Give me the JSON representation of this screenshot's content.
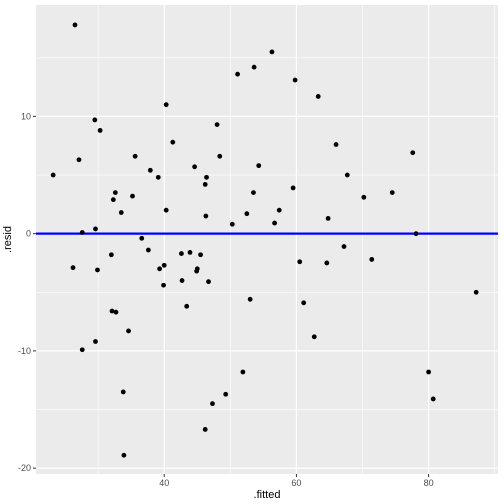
{
  "chart_data": {
    "type": "scatter",
    "title": "",
    "xlabel": ".fitted",
    "ylabel": ".resid",
    "xlim": [
      20.6,
      90.5
    ],
    "ylim": [
      -20.5,
      19.5
    ],
    "x_ticks": [
      40,
      60,
      80
    ],
    "x_minor": [
      30,
      50,
      70,
      90
    ],
    "y_ticks": [
      -20,
      -10,
      0,
      10
    ],
    "y_minor": [
      -15,
      -5,
      5,
      15
    ],
    "x_tick_labels": [
      "40",
      "60",
      "80"
    ],
    "y_tick_labels": [
      "-20",
      "-10",
      "0",
      "10"
    ],
    "grid": true,
    "hline": {
      "y": 0,
      "color": "#0000ff"
    },
    "colors": {
      "panel": "#ebebeb",
      "grid": "#ffffff",
      "points": "#000000"
    },
    "points": [
      [
        23.2,
        5.0
      ],
      [
        26.5,
        17.8
      ],
      [
        26.2,
        -2.9
      ],
      [
        27.1,
        6.3
      ],
      [
        27.6,
        0.1
      ],
      [
        27.6,
        -9.9
      ],
      [
        29.5,
        9.7
      ],
      [
        29.6,
        0.4
      ],
      [
        29.9,
        -3.1
      ],
      [
        29.6,
        -9.2
      ],
      [
        30.3,
        8.8
      ],
      [
        32.0,
        -1.8
      ],
      [
        32.3,
        2.9
      ],
      [
        32.6,
        3.5
      ],
      [
        32.1,
        -6.6
      ],
      [
        32.7,
        -6.7
      ],
      [
        33.5,
        1.8
      ],
      [
        33.8,
        -13.5
      ],
      [
        33.9,
        -18.9
      ],
      [
        34.6,
        -8.3
      ],
      [
        35.2,
        3.2
      ],
      [
        35.6,
        6.6
      ],
      [
        36.6,
        -0.4
      ],
      [
        37.6,
        -1.4
      ],
      [
        37.9,
        5.4
      ],
      [
        39.1,
        4.8
      ],
      [
        39.3,
        -3.0
      ],
      [
        39.9,
        -4.4
      ],
      [
        40.0,
        -2.7
      ],
      [
        40.3,
        2.0
      ],
      [
        40.3,
        11.0
      ],
      [
        41.3,
        7.8
      ],
      [
        42.6,
        -1.7
      ],
      [
        42.7,
        -4.0
      ],
      [
        43.4,
        -6.2
      ],
      [
        43.9,
        -1.6
      ],
      [
        44.6,
        5.7
      ],
      [
        44.9,
        -3.2
      ],
      [
        45.0,
        -3.0
      ],
      [
        45.5,
        -1.8
      ],
      [
        46.2,
        4.2
      ],
      [
        46.3,
        1.5
      ],
      [
        46.4,
        4.8
      ],
      [
        46.7,
        -4.1
      ],
      [
        47.3,
        -14.5
      ],
      [
        46.2,
        -16.7
      ],
      [
        48.0,
        9.3
      ],
      [
        48.4,
        6.6
      ],
      [
        49.3,
        -13.7
      ],
      [
        50.3,
        0.8
      ],
      [
        51.1,
        13.6
      ],
      [
        51.9,
        -11.8
      ],
      [
        52.5,
        1.7
      ],
      [
        53.0,
        -5.6
      ],
      [
        53.5,
        3.5
      ],
      [
        53.6,
        14.2
      ],
      [
        54.3,
        5.8
      ],
      [
        56.3,
        15.5
      ],
      [
        56.7,
        0.9
      ],
      [
        57.4,
        2.0
      ],
      [
        59.5,
        3.9
      ],
      [
        59.8,
        13.1
      ],
      [
        60.5,
        -2.4
      ],
      [
        61.1,
        -5.9
      ],
      [
        62.7,
        -8.8
      ],
      [
        63.3,
        11.7
      ],
      [
        64.8,
        1.3
      ],
      [
        64.6,
        -2.5
      ],
      [
        66.0,
        7.6
      ],
      [
        67.2,
        -1.1
      ],
      [
        67.7,
        5.0
      ],
      [
        70.2,
        3.1
      ],
      [
        71.4,
        -2.2
      ],
      [
        74.5,
        3.5
      ],
      [
        77.6,
        6.9
      ],
      [
        78.1,
        0.0
      ],
      [
        80.0,
        -11.8
      ],
      [
        80.7,
        -14.1
      ],
      [
        87.2,
        -5.0
      ]
    ]
  }
}
